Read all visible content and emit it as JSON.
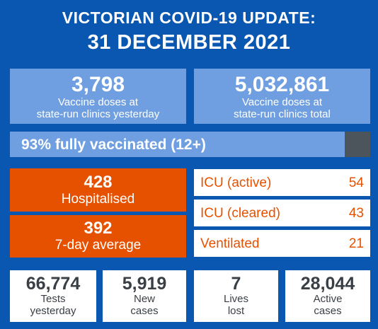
{
  "header": {
    "line1": "VICTORIAN COVID-19 UPDATE:",
    "line2": "31 DECEMBER 2021"
  },
  "vaccine_doses": [
    {
      "value": "3,798",
      "label_line1": "Vaccine doses at",
      "label_line2": "state-run clinics yesterday"
    },
    {
      "value": "5,032,861",
      "label_line1": "Vaccine doses at",
      "label_line2": "state-run clinics total"
    }
  ],
  "fully_vaccinated": {
    "label": "93% fully vaccinated (12+)",
    "percent": 93,
    "colors": {
      "fill": "#6f9fe0",
      "remainder": "#4c545c"
    }
  },
  "hospital": {
    "hospitalised_value": "428",
    "hospitalised_label": "Hospitalised",
    "average_value": "392",
    "average_label": "7-day average",
    "color": "#e65100"
  },
  "icu": [
    {
      "name": "ICU (active)",
      "value": "54"
    },
    {
      "name": "ICU (cleared)",
      "value": "43"
    },
    {
      "name": "Ventilated",
      "value": "21"
    }
  ],
  "stats": [
    {
      "value": "66,774",
      "line1": "Tests",
      "line2": "yesterday"
    },
    {
      "value": "5,919",
      "line1": "New",
      "line2": "cases"
    },
    {
      "value": "7",
      "line1": "Lives",
      "line2": "lost"
    },
    {
      "value": "28,044",
      "line1": "Active",
      "line2": "cases"
    }
  ],
  "colors": {
    "background": "#0a57b1",
    "light_blue": "#6f9fe0",
    "orange": "#e65100"
  }
}
